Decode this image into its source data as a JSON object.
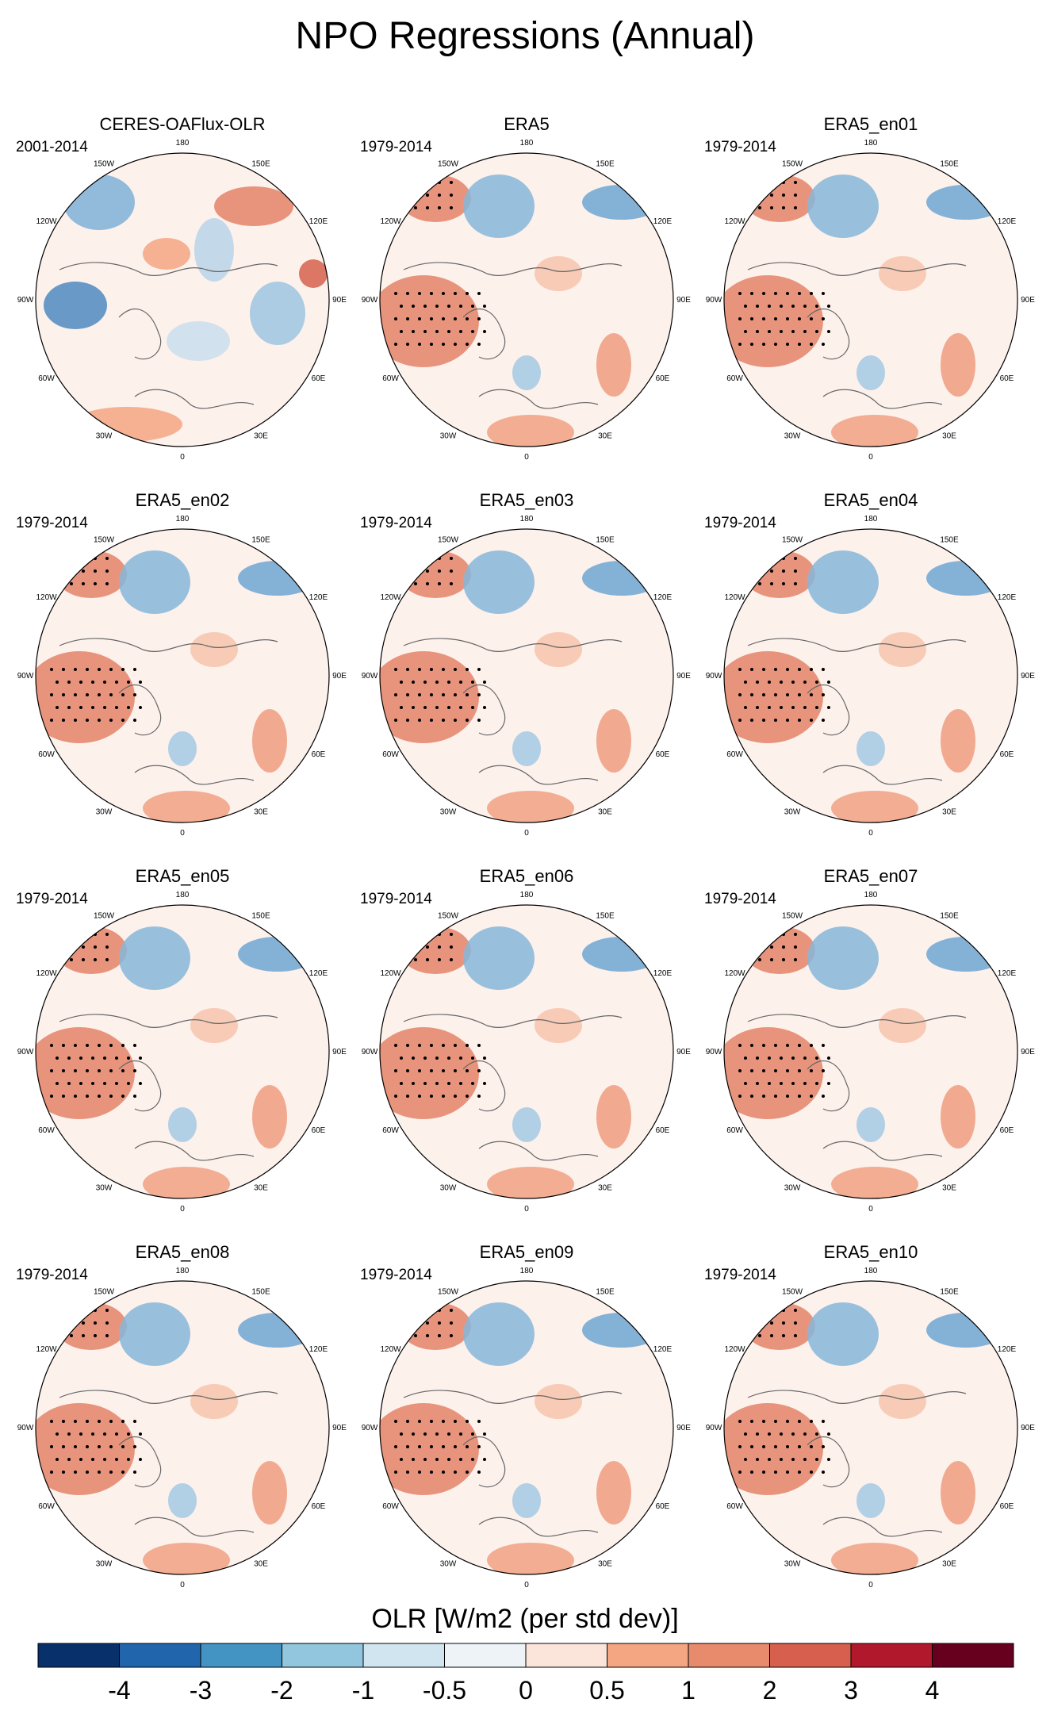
{
  "title": "NPO Regressions (Annual)",
  "panels": [
    {
      "title": "CERES-OAFlux-OLR",
      "years": "2001-2014"
    },
    {
      "title": "ERA5",
      "years": "1979-2014"
    },
    {
      "title": "ERA5_en01",
      "years": "1979-2014"
    },
    {
      "title": "ERA5_en02",
      "years": "1979-2014"
    },
    {
      "title": "ERA5_en03",
      "years": "1979-2014"
    },
    {
      "title": "ERA5_en04",
      "years": "1979-2014"
    },
    {
      "title": "ERA5_en05",
      "years": "1979-2014"
    },
    {
      "title": "ERA5_en06",
      "years": "1979-2014"
    },
    {
      "title": "ERA5_en07",
      "years": "1979-2014"
    },
    {
      "title": "ERA5_en08",
      "years": "1979-2014"
    },
    {
      "title": "ERA5_en09",
      "years": "1979-2014"
    },
    {
      "title": "ERA5_en10",
      "years": "1979-2014"
    }
  ],
  "longitude_labels": [
    "180",
    "150E",
    "120E",
    "90E",
    "60E",
    "30E",
    "0",
    "30W",
    "60W",
    "90W",
    "120W",
    "150W"
  ],
  "colorbar": {
    "label": "OLR [W/m2 (per std dev)]",
    "tick_labels": [
      "-4",
      "-3",
      "-2",
      "-1",
      "-0.5",
      "0",
      "0.5",
      "1",
      "2",
      "3",
      "4"
    ],
    "colors": [
      "#08306b",
      "#2166ac",
      "#4393c3",
      "#92c5de",
      "#d1e5f0",
      "#eef3f7",
      "#fbe5da",
      "#f4a582",
      "#e88a6c",
      "#d6604d",
      "#b2182b",
      "#67001f"
    ]
  }
}
